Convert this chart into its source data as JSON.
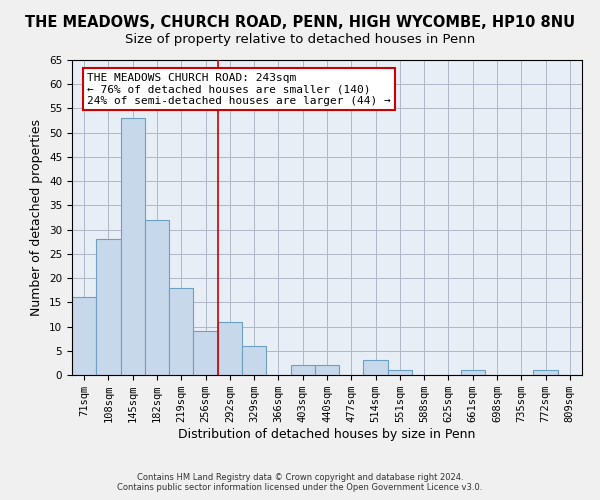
{
  "title": "THE MEADOWS, CHURCH ROAD, PENN, HIGH WYCOMBE, HP10 8NU",
  "subtitle": "Size of property relative to detached houses in Penn",
  "xlabel": "Distribution of detached houses by size in Penn",
  "ylabel": "Number of detached properties",
  "bar_color": "#c8d8eb",
  "bar_edge_color": "#6aa0c0",
  "categories": [
    "71sqm",
    "108sqm",
    "145sqm",
    "182sqm",
    "219sqm",
    "256sqm",
    "292sqm",
    "329sqm",
    "366sqm",
    "403sqm",
    "440sqm",
    "477sqm",
    "514sqm",
    "551sqm",
    "588sqm",
    "625sqm",
    "661sqm",
    "698sqm",
    "735sqm",
    "772sqm",
    "809sqm"
  ],
  "values": [
    16,
    28,
    53,
    32,
    18,
    9,
    11,
    6,
    0,
    2,
    2,
    0,
    3,
    1,
    0,
    0,
    1,
    0,
    0,
    1,
    0
  ],
  "ylim": [
    0,
    65
  ],
  "yticks": [
    0,
    5,
    10,
    15,
    20,
    25,
    30,
    35,
    40,
    45,
    50,
    55,
    60,
    65
  ],
  "vline_x": 5.5,
  "vline_color": "#cc0000",
  "annotation_title": "THE MEADOWS CHURCH ROAD: 243sqm",
  "annotation_line1": "← 76% of detached houses are smaller (140)",
  "annotation_line2": "24% of semi-detached houses are larger (44) →",
  "footer1": "Contains HM Land Registry data © Crown copyright and database right 2024.",
  "footer2": "Contains public sector information licensed under the Open Government Licence v3.0.",
  "background_color": "#f0f0f0",
  "plot_background_color": "#e8eef5",
  "grid_color": "#b0b8c8",
  "title_fontsize": 10.5,
  "subtitle_fontsize": 9.5,
  "tick_fontsize": 7.5,
  "axis_label_fontsize": 9
}
